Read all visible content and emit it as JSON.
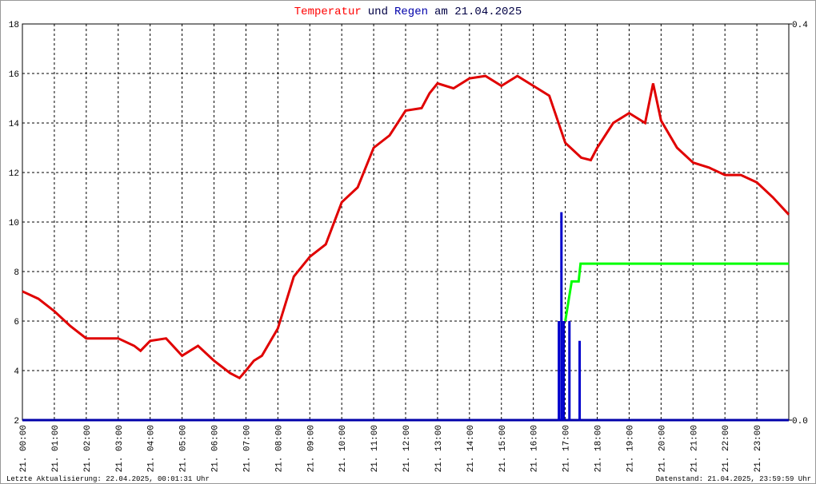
{
  "chart_data": {
    "type": "line",
    "title_parts": [
      {
        "text": "Temperatur",
        "color": "#ff0000"
      },
      {
        "text": "und",
        "color": "#000044"
      },
      {
        "text": "Regen",
        "color": "#0000aa"
      },
      {
        "text": "am 21.04.2025",
        "color": "#000044"
      }
    ],
    "footer_left": "Letzte Aktualisierung: 22.04.2025, 00:01:31 Uhr",
    "footer_right": "Datenstand: 21.04.2025, 23:59:59 Uhr",
    "xlim": [
      0,
      24
    ],
    "xticks": [
      {
        "value": 0,
        "label": "21. 00:00"
      },
      {
        "value": 1,
        "label": "21. 01:00"
      },
      {
        "value": 2,
        "label": "21. 02:00"
      },
      {
        "value": 3,
        "label": "21. 03:00"
      },
      {
        "value": 4,
        "label": "21. 04:00"
      },
      {
        "value": 5,
        "label": "21. 05:00"
      },
      {
        "value": 6,
        "label": "21. 06:00"
      },
      {
        "value": 7,
        "label": "21. 07:00"
      },
      {
        "value": 8,
        "label": "21. 08:00"
      },
      {
        "value": 9,
        "label": "21. 09:00"
      },
      {
        "value": 10,
        "label": "21. 10:00"
      },
      {
        "value": 11,
        "label": "21. 11:00"
      },
      {
        "value": 12,
        "label": "21. 12:00"
      },
      {
        "value": 13,
        "label": "21. 13:00"
      },
      {
        "value": 14,
        "label": "21. 14:00"
      },
      {
        "value": 15,
        "label": "21. 15:00"
      },
      {
        "value": 16,
        "label": "21. 16:00"
      },
      {
        "value": 17,
        "label": "21. 17:00"
      },
      {
        "value": 18,
        "label": "21. 18:00"
      },
      {
        "value": 19,
        "label": "21. 19:00"
      },
      {
        "value": 20,
        "label": "21. 20:00"
      },
      {
        "value": 21,
        "label": "21. 21:00"
      },
      {
        "value": 22,
        "label": "21. 22:00"
      },
      {
        "value": 23,
        "label": "21. 23:00"
      }
    ],
    "ylim": [
      2,
      18
    ],
    "yticks": [
      2,
      4,
      6,
      8,
      10,
      12,
      14,
      16,
      18
    ],
    "y2lim": [
      0,
      0.4
    ],
    "y2ticks": [
      {
        "value": 0,
        "label": "0.0"
      },
      {
        "value": 0.4,
        "label": "0.4"
      }
    ],
    "grid": true,
    "series": [
      {
        "type": "line",
        "axis": "y",
        "color": "#e00000",
        "x": [
          0,
          0.5,
          1,
          1.5,
          2,
          2.5,
          3,
          3.5,
          3.7,
          4,
          4.5,
          5,
          5.5,
          6,
          6.5,
          6.8,
          7,
          7.25,
          7.5,
          8,
          8.5,
          9,
          9.5,
          10,
          10.5,
          11,
          11.5,
          12,
          12.5,
          12.75,
          13,
          13.5,
          14,
          14.5,
          15,
          15.5,
          16,
          16.5,
          17,
          17.5,
          17.8,
          18,
          18.5,
          19,
          19.5,
          19.75,
          20,
          20.5,
          21,
          21.5,
          22,
          22.5,
          23,
          23.5,
          24
        ],
        "values": [
          7.2,
          6.9,
          6.4,
          5.8,
          5.3,
          5.3,
          5.3,
          5.0,
          4.8,
          5.2,
          5.3,
          4.6,
          5.0,
          4.4,
          3.9,
          3.7,
          4.0,
          4.4,
          4.6,
          5.7,
          7.8,
          8.6,
          9.1,
          10.8,
          11.4,
          13.0,
          13.5,
          14.5,
          14.6,
          15.2,
          15.6,
          15.4,
          15.8,
          15.9,
          15.5,
          15.9,
          15.5,
          15.1,
          13.2,
          12.6,
          12.5,
          13.0,
          14.0,
          14.4,
          14.0,
          15.6,
          14.1,
          13.0,
          12.4,
          12.2,
          11.9,
          11.9,
          11.6,
          11.0,
          10.3
        ]
      },
      {
        "type": "line",
        "axis": "y2",
        "color": "#00ff00",
        "x": [
          17.0,
          17.2,
          17.42,
          17.48,
          24
        ],
        "values": [
          0.1,
          0.14,
          0.14,
          0.158,
          0.158
        ]
      },
      {
        "type": "bar",
        "axis": "y2",
        "color": "#0000cc",
        "x": [
          16.8,
          16.88,
          16.95,
          17.13,
          17.45
        ],
        "values": [
          0.1,
          0.21,
          0.1,
          0.1,
          0.08
        ]
      }
    ]
  }
}
